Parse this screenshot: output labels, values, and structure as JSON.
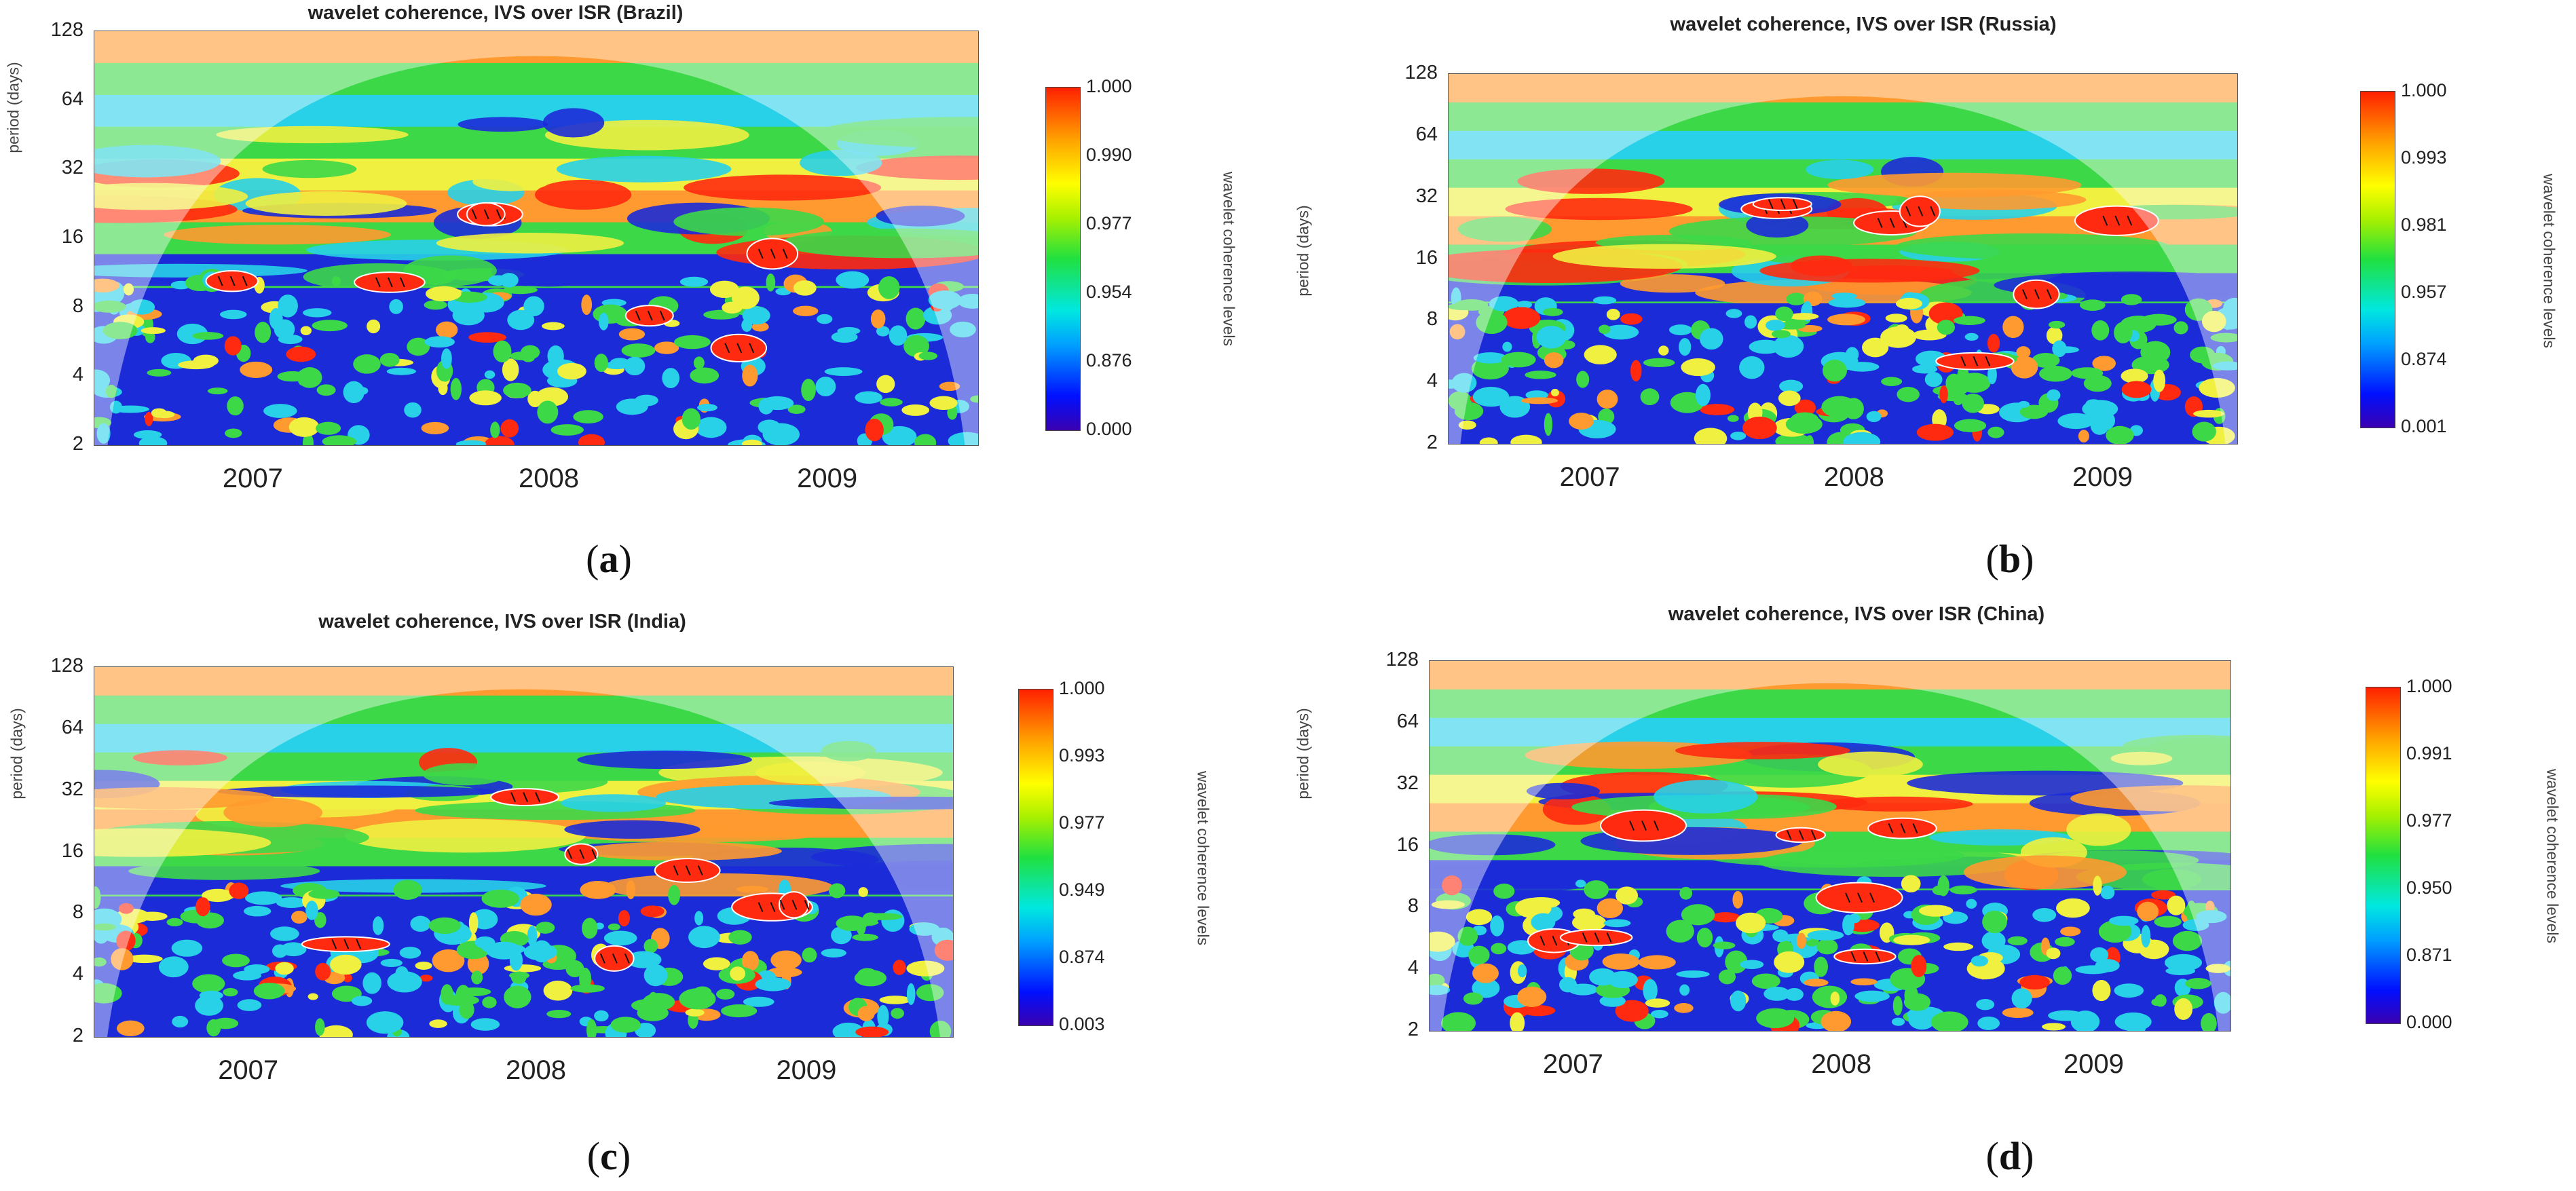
{
  "chart_data": [
    {
      "id": "a",
      "type": "heatmap",
      "title": "wavelet coherence, IVS over ISR (Brazil)",
      "ylabel": "period (days)",
      "yticks": [
        "128",
        "64",
        "32",
        "16",
        "8",
        "4",
        "2"
      ],
      "xticks": [
        "2007",
        "2008",
        "2009"
      ],
      "colorbar_label": "wavelet coherence levels",
      "colorbar_ticks": [
        "1.000",
        "0.990",
        "0.977",
        "0.954",
        "0.876",
        "0.000"
      ],
      "caption_letter": "a"
    },
    {
      "id": "b",
      "type": "heatmap",
      "title": "wavelet coherence, IVS over ISR (Russia)",
      "ylabel": "period (days)",
      "yticks": [
        "128",
        "64",
        "32",
        "16",
        "8",
        "4",
        "2"
      ],
      "xticks": [
        "2007",
        "2008",
        "2009"
      ],
      "colorbar_label": "wavelet coherence levels",
      "colorbar_ticks": [
        "1.000",
        "0.993",
        "0.981",
        "0.957",
        "0.874",
        "0.001"
      ],
      "caption_letter": "b"
    },
    {
      "id": "c",
      "type": "heatmap",
      "title": "wavelet coherence, IVS over ISR (India)",
      "ylabel": "period (days)",
      "yticks": [
        "128",
        "64",
        "32",
        "16",
        "8",
        "4",
        "2"
      ],
      "xticks": [
        "2007",
        "2008",
        "2009"
      ],
      "colorbar_label": "wavelet coherence levels",
      "colorbar_ticks": [
        "1.000",
        "0.993",
        "0.977",
        "0.949",
        "0.874",
        "0.003"
      ],
      "caption_letter": "c"
    },
    {
      "id": "d",
      "type": "heatmap",
      "title": "wavelet coherence, IVS over ISR (China)",
      "ylabel": "period (days)",
      "yticks": [
        "128",
        "64",
        "32",
        "16",
        "8",
        "4",
        "2"
      ],
      "xticks": [
        "2007",
        "2008",
        "2009"
      ],
      "colorbar_label": "wavelet coherence levels",
      "colorbar_ticks": [
        "1.000",
        "0.991",
        "0.977",
        "0.950",
        "0.871",
        "0.000"
      ],
      "caption_letter": "d"
    }
  ],
  "colors": {
    "low": "#1c2bd8",
    "cyan": "#28d0e8",
    "green": "#3cd848",
    "yellow": "#f0f040",
    "orange": "#ff9a30",
    "high": "#ff2a10",
    "cone_shade": "#ffffff"
  }
}
